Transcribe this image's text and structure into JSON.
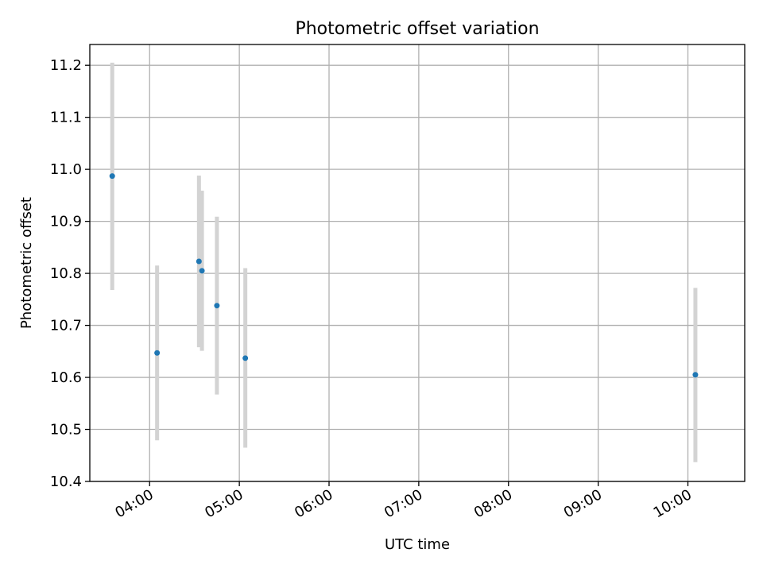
{
  "chart_data": {
    "type": "scatter",
    "title": "Photometric offset variation",
    "xlabel": "UTC time",
    "ylabel": "Photometric offset",
    "x_format": "HH:MM",
    "xlim": [
      "03:20",
      "10:38"
    ],
    "ylim": [
      10.4,
      11.24
    ],
    "xticks": [
      "04:00",
      "05:00",
      "06:00",
      "07:00",
      "08:00",
      "09:00",
      "10:00"
    ],
    "yticks": [
      10.4,
      10.5,
      10.6,
      10.7,
      10.8,
      10.9,
      11.0,
      11.1,
      11.2
    ],
    "yticks_labels": [
      "10.4",
      "10.5",
      "10.6",
      "10.7",
      "10.8",
      "10.9",
      "11.0",
      "11.1",
      "11.2"
    ],
    "grid": true,
    "marker_color": "#1f77b4",
    "errorbar_color": "#d3d3d3",
    "points": [
      {
        "x": "03:35",
        "y": 10.987,
        "ylow": 10.768,
        "yhigh": 11.205
      },
      {
        "x": "04:05",
        "y": 10.647,
        "ylow": 10.479,
        "yhigh": 10.815
      },
      {
        "x": "04:33",
        "y": 10.823,
        "ylow": 10.658,
        "yhigh": 10.988
      },
      {
        "x": "04:35",
        "y": 10.805,
        "ylow": 10.651,
        "yhigh": 10.959
      },
      {
        "x": "04:45",
        "y": 10.738,
        "ylow": 10.567,
        "yhigh": 10.909
      },
      {
        "x": "05:04",
        "y": 10.637,
        "ylow": 10.465,
        "yhigh": 10.81
      },
      {
        "x": "10:05",
        "y": 10.605,
        "ylow": 10.437,
        "yhigh": 10.772
      }
    ]
  }
}
